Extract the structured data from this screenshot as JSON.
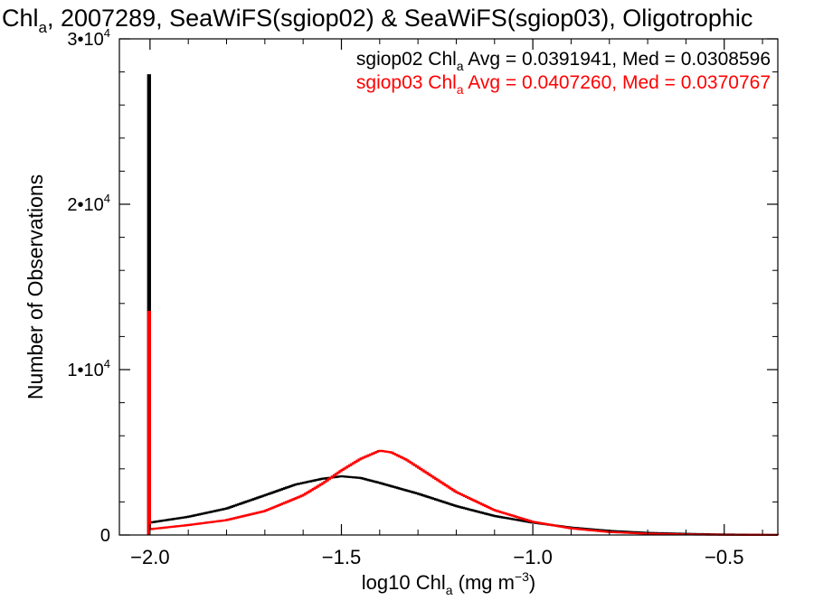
{
  "chart_data": {
    "type": "line",
    "title": {
      "prefix": "Chl",
      "sub": "a",
      "rest": ", 2007289, SeaWiFS(sgiop02) & SeaWiFS(sgiop03), Oligotrophic"
    },
    "xlabel": {
      "prefix": "log10 Chl",
      "sub": "a",
      "mid": " (mg m",
      "sup": "−3",
      "end": ")"
    },
    "ylabel": "Number of Observations",
    "xlim": [
      -2.08,
      -0.36
    ],
    "ylim": [
      0,
      30000
    ],
    "xticks": [
      {
        "value": -2.0,
        "label": "−2.0"
      },
      {
        "value": -1.5,
        "label": "−1.5"
      },
      {
        "value": -1.0,
        "label": "−1.0"
      },
      {
        "value": -0.5,
        "label": "−0.5"
      }
    ],
    "yticks": [
      {
        "value": 0,
        "mant": "0",
        "exp": ""
      },
      {
        "value": 10000,
        "mant": "1•10",
        "exp": "4"
      },
      {
        "value": 20000,
        "mant": "2•10",
        "exp": "4"
      },
      {
        "value": 30000,
        "mant": "3•10",
        "exp": "4"
      }
    ],
    "grid": false,
    "legend_placement": "top-right",
    "series": [
      {
        "name": "sgiop02",
        "color": "#000000",
        "stats": {
          "prefix": "sgiop02 Chl",
          "sub": "a",
          "rest": " Avg = 0.0391941, Med = 0.0308596"
        },
        "spike": {
          "x": -2.0,
          "y": 27800
        },
        "points": [
          [
            -2.0,
            750
          ],
          [
            -1.9,
            1100
          ],
          [
            -1.8,
            1600
          ],
          [
            -1.7,
            2400
          ],
          [
            -1.62,
            3050
          ],
          [
            -1.55,
            3400
          ],
          [
            -1.5,
            3550
          ],
          [
            -1.45,
            3450
          ],
          [
            -1.4,
            3150
          ],
          [
            -1.3,
            2500
          ],
          [
            -1.2,
            1750
          ],
          [
            -1.1,
            1150
          ],
          [
            -1.0,
            750
          ],
          [
            -0.9,
            450
          ],
          [
            -0.8,
            250
          ],
          [
            -0.7,
            130
          ],
          [
            -0.6,
            70
          ],
          [
            -0.5,
            30
          ],
          [
            -0.4,
            10
          ],
          [
            -0.36,
            5
          ]
        ]
      },
      {
        "name": "sgiop03",
        "color": "#ff0000",
        "stats": {
          "prefix": "sgiop03 Chl",
          "sub": "a",
          "rest": " Avg = 0.0407260, Med = 0.0370767"
        },
        "spike": {
          "x": -2.0,
          "y": 13500
        },
        "points": [
          [
            -2.0,
            350
          ],
          [
            -1.9,
            600
          ],
          [
            -1.8,
            900
          ],
          [
            -1.7,
            1450
          ],
          [
            -1.6,
            2400
          ],
          [
            -1.55,
            3100
          ],
          [
            -1.5,
            3900
          ],
          [
            -1.45,
            4600
          ],
          [
            -1.4,
            5100
          ],
          [
            -1.37,
            5000
          ],
          [
            -1.33,
            4550
          ],
          [
            -1.28,
            3800
          ],
          [
            -1.2,
            2600
          ],
          [
            -1.1,
            1500
          ],
          [
            -1.0,
            800
          ],
          [
            -0.9,
            400
          ],
          [
            -0.8,
            180
          ],
          [
            -0.7,
            80
          ],
          [
            -0.6,
            35
          ],
          [
            -0.5,
            12
          ],
          [
            -0.36,
            3
          ]
        ]
      }
    ]
  }
}
